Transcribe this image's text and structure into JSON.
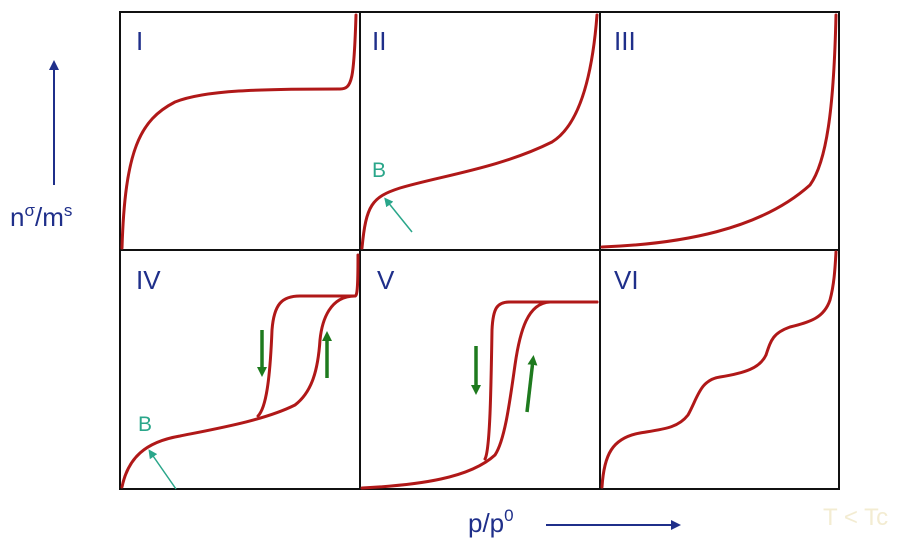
{
  "y_axis_label": {
    "main": "n",
    "sup1": "σ",
    "mid": "/m",
    "sup2": "s"
  },
  "x_axis_label": {
    "main": "p/p",
    "sup": "0"
  },
  "note": "T < Tc",
  "panels": [
    {
      "label": "I",
      "isotherm": "type I"
    },
    {
      "label": "II",
      "isotherm": "type II",
      "marker": "B"
    },
    {
      "label": "III",
      "isotherm": "type III"
    },
    {
      "label": "IV",
      "isotherm": "type IV",
      "marker": "B"
    },
    {
      "label": "V",
      "isotherm": "type V"
    },
    {
      "label": "VI",
      "isotherm": "type VI"
    }
  ],
  "colors": {
    "curve": "#b01818",
    "frame": "#111111",
    "labels": "#1f2f8a",
    "marker": "#2aa68a",
    "hysteresis_arrows": "#1e7a1e",
    "note": "#f3ecd2"
  }
}
